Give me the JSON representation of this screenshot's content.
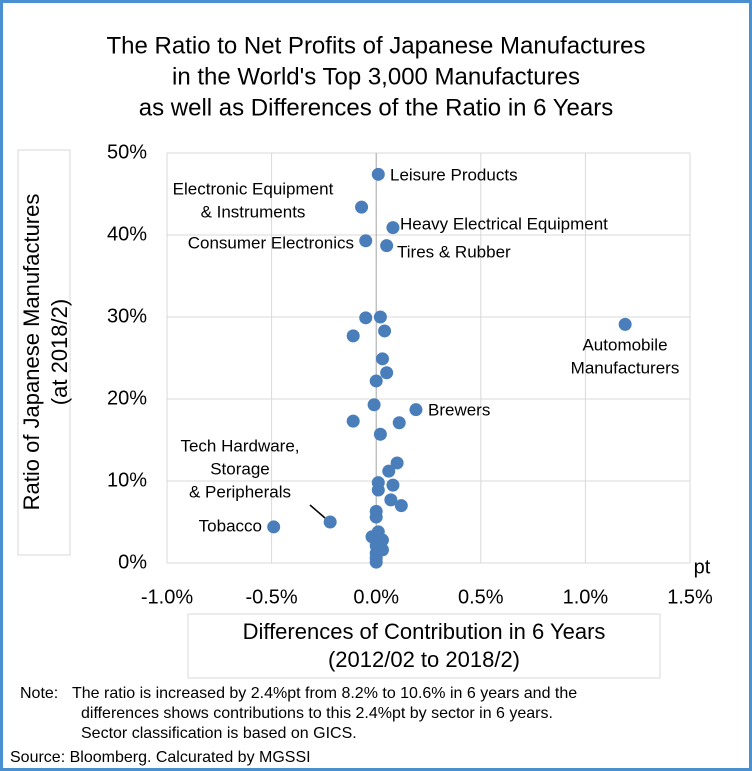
{
  "chart_data": {
    "type": "scatter",
    "title": [
      "The Ratio to Net Profits of Japanese Manufactures",
      "in the World's Top 3,000 Manufactures",
      "as well as Differences of the Ratio in 6 Years"
    ],
    "x_label": [
      "Differences of Contribution in 6 Years",
      "(2012/02 to 2018/2)"
    ],
    "y_label": [
      "Ratio of Japanese Manufactures",
      "(at 2018/2)"
    ],
    "x_unit": "pt",
    "color": "#4a7ebb",
    "grid": true,
    "xlim": [
      -1.0,
      1.5
    ],
    "xticks": [
      {
        "value": -1.0,
        "label": "-1.0%"
      },
      {
        "value": -0.5,
        "label": "-0.5%"
      },
      {
        "value": 0.0,
        "label": "0.0%"
      },
      {
        "value": 0.5,
        "label": "0.5%"
      },
      {
        "value": 1.0,
        "label": "1.0%"
      },
      {
        "value": 1.5,
        "label": "1.5%"
      }
    ],
    "ylim": [
      0,
      50
    ],
    "yticks": [
      {
        "value": 0,
        "label": "0%"
      },
      {
        "value": 10,
        "label": "10%"
      },
      {
        "value": 20,
        "label": "20%"
      },
      {
        "value": 30,
        "label": "30%"
      },
      {
        "value": 40,
        "label": "40%"
      },
      {
        "value": 50,
        "label": "50%"
      }
    ],
    "x": [
      0.01,
      -0.07,
      0.08,
      -0.05,
      0.05,
      1.19,
      0.19,
      -0.49,
      -0.22,
      -0.05,
      0.02,
      0.04,
      -0.11,
      0.03,
      0.05,
      0.0,
      -0.01,
      -0.11,
      0.11,
      0.02,
      0.1,
      0.06,
      0.01,
      0.01,
      0.08,
      0.07,
      0.12,
      0.0,
      0.0,
      0.01,
      -0.02,
      0.03,
      0.0,
      0.03,
      0.0,
      0.0,
      0.0
    ],
    "values": [
      47.4,
      43.4,
      40.9,
      39.3,
      38.7,
      29.1,
      18.7,
      4.4,
      5.0,
      29.9,
      30.0,
      28.3,
      27.7,
      24.9,
      23.2,
      22.2,
      19.3,
      17.3,
      17.1,
      15.7,
      12.2,
      11.2,
      9.8,
      8.9,
      9.5,
      7.7,
      7.0,
      6.3,
      5.6,
      3.8,
      3.2,
      2.8,
      2.1,
      1.6,
      1.2,
      0.6,
      0.1
    ],
    "annotations": [
      {
        "lines": [
          "Leisure Products"
        ]
      },
      {
        "lines": [
          "Electronic Equipment",
          "& Instruments"
        ]
      },
      {
        "lines": [
          "Heavy Electrical Equipment"
        ]
      },
      {
        "lines": [
          "Consumer Electronics"
        ]
      },
      {
        "lines": [
          "Tires & Rubber"
        ]
      },
      {
        "lines": [
          "Automobile",
          "Manufacturers"
        ]
      },
      {
        "lines": [
          "Brewers"
        ]
      },
      {
        "lines": [
          "Tobacco"
        ]
      },
      {
        "lines": [
          "Tech Hardware,",
          "Storage",
          "& Peripherals"
        ]
      }
    ],
    "note_label": "Note:",
    "note": [
      "The ratio is increased by 2.4%pt from 8.2% to 10.6% in 6 years and the",
      "differences shows contributions to this 2.4%pt by sector in 6 years.",
      "Sector classification is based on GICS."
    ],
    "source": "Source: Bloomberg. Calcurated by MGSSI"
  }
}
